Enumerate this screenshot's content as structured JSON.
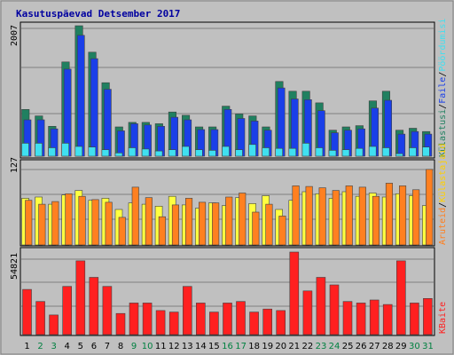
{
  "title": "Kasutuspäevad Detsember 2017",
  "colors": {
    "background": "#c0c0c0",
    "panel": "#c0c0c0",
    "grid": "#808080",
    "title": "#0000a0",
    "weekday": "#000000",
    "weekend": "#008040",
    "visits": "#208060",
    "pages": "#1a3fe8",
    "hits": "#40e0f0",
    "files": "#ffff40",
    "bytes": "#ff2020",
    "sites": "#ff8020"
  },
  "panels": {
    "top": {
      "max_label": "2007",
      "legend": [
        "Külastusi",
        "Faile",
        "Pöördumisi"
      ],
      "separator": "/",
      "legend_colors": [
        "#208060",
        "#1a3fe8",
        "#40e0f0"
      ]
    },
    "middle": {
      "max_label": "127",
      "legend": [
        "Külastajaid",
        "Aruteid"
      ],
      "separator": "/",
      "legend_colors": [
        "#ffd000",
        "#ff8020"
      ]
    },
    "bottom": {
      "max_label": "54821",
      "legend": [
        "KBaite"
      ],
      "legend_colors": [
        "#ff2020"
      ]
    }
  },
  "chart_data": {
    "type": "bar",
    "categories": [
      "1",
      "2",
      "3",
      "4",
      "5",
      "6",
      "7",
      "8",
      "9",
      "10",
      "11",
      "12",
      "13",
      "14",
      "15",
      "16",
      "17",
      "18",
      "19",
      "20",
      "21",
      "22",
      "23",
      "24",
      "25",
      "26",
      "27",
      "28",
      "29",
      "30",
      "31"
    ],
    "weekend_days": [
      "2",
      "3",
      "9",
      "10",
      "16",
      "17",
      "23",
      "24",
      "30",
      "31"
    ],
    "panels": [
      {
        "name": "top",
        "ylim": [
          0,
          2007
        ],
        "series": [
          {
            "name": "Külastusi",
            "values": [
              720,
              620,
              460,
              1450,
              2007,
              1600,
              1130,
              450,
              520,
              520,
              500,
              680,
              630,
              450,
              450,
              770,
              650,
              620,
              450,
              1150,
              1000,
              1000,
              820,
              400,
              450,
              470,
              850,
              1000,
              400,
              430,
              380
            ]
          },
          {
            "name": "Faile",
            "values": [
              560,
              560,
              420,
              1340,
              1860,
              1500,
              1030,
              390,
              500,
              480,
              460,
              600,
              560,
              410,
              410,
              720,
              580,
              540,
              400,
              1050,
              880,
              870,
              700,
              360,
              400,
              420,
              740,
              860,
              340,
              380,
              340
            ]
          },
          {
            "name": "Pöördumisi",
            "values": [
              200,
              200,
              130,
              200,
              150,
              140,
              100,
              50,
              130,
              110,
              80,
              100,
              150,
              100,
              90,
              150,
              100,
              180,
              130,
              120,
              120,
              200,
              130,
              90,
              100,
              120,
              150,
              130,
              40,
              130,
              140
            ]
          }
        ]
      },
      {
        "name": "middle",
        "ylim": [
          0,
          127
        ],
        "series": [
          {
            "name": "Külastajaid",
            "values": [
              71,
              73,
              62,
              76,
              83,
              68,
              71,
              54,
              64,
              62,
              59,
              74,
              61,
              56,
              64,
              60,
              72,
              63,
              75,
              54,
              68,
              81,
              78,
              71,
              81,
              74,
              79,
              73,
              78,
              75,
              60
            ]
          },
          {
            "name": "Aruteid",
            "values": [
              68,
              62,
              66,
              78,
              74,
              69,
              65,
              42,
              88,
              72,
              43,
              61,
              71,
              65,
              64,
              73,
              79,
              50,
              62,
              44,
              90,
              89,
              87,
              83,
              90,
              88,
              74,
              94,
              90,
              84,
              115
            ]
          }
        ]
      },
      {
        "name": "bottom",
        "ylim": [
          0,
          54821
        ],
        "series": [
          {
            "name": "KBaite",
            "values": [
              30000,
              22000,
              13000,
              32000,
              49000,
              38000,
              32000,
              14000,
              21000,
              21000,
              16000,
              15000,
              32000,
              21000,
              15000,
              21000,
              22000,
              15000,
              17000,
              16000,
              54821,
              29000,
              38000,
              33000,
              22000,
              21000,
              23000,
              20000,
              49000,
              21000,
              24000
            ]
          }
        ]
      }
    ]
  }
}
